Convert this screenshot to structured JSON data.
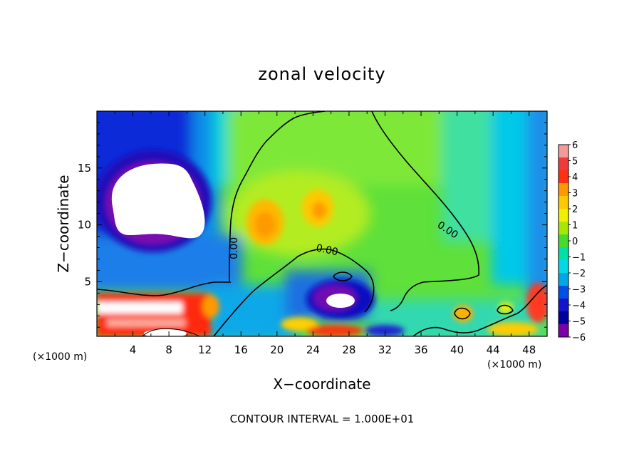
{
  "chart_data": {
    "type": "heatmap",
    "title": "zonal velocity",
    "xlabel": "X−coordinate",
    "ylabel": "Z−coordinate",
    "x_unit_label_left": "(×1000 m)",
    "x_unit_label_right": "(×1000 m)",
    "xlim": [
      0,
      50
    ],
    "ylim": [
      0.2,
      20
    ],
    "x_ticks": [
      4,
      8,
      12,
      16,
      20,
      24,
      28,
      32,
      36,
      40,
      44,
      48
    ],
    "x_tick_labels": [
      "4",
      "8",
      "12",
      "16",
      "20",
      "24",
      "28",
      "32",
      "36",
      "40",
      "44",
      "48"
    ],
    "y_ticks": [
      5,
      10,
      15
    ],
    "y_tick_labels": [
      "5",
      "10",
      "15"
    ],
    "colorbar": {
      "levels": [
        6,
        5,
        4,
        3,
        2,
        1,
        0,
        -1,
        -2,
        -3,
        -4,
        -5,
        -6
      ],
      "labels": [
        "6",
        "5",
        "4",
        "3",
        "2",
        "1",
        "0",
        "−1",
        "−2",
        "−3",
        "−4",
        "−5",
        "−6"
      ],
      "colors": [
        "#f59a9a",
        "#f03a3a",
        "#ff3010",
        "#ff9900",
        "#ffc800",
        "#f0f000",
        "#a8e800",
        "#46dc2c",
        "#00e0a8",
        "#00d8e8",
        "#00a8e8",
        "#0050e8",
        "#1414d0",
        "#0000a0",
        "#7a00a8"
      ]
    },
    "contour_labels": [
      "0.00",
      "0.00",
      "0.00"
    ],
    "note": "CONTOUR INTERVAL = 1.000E+01"
  }
}
